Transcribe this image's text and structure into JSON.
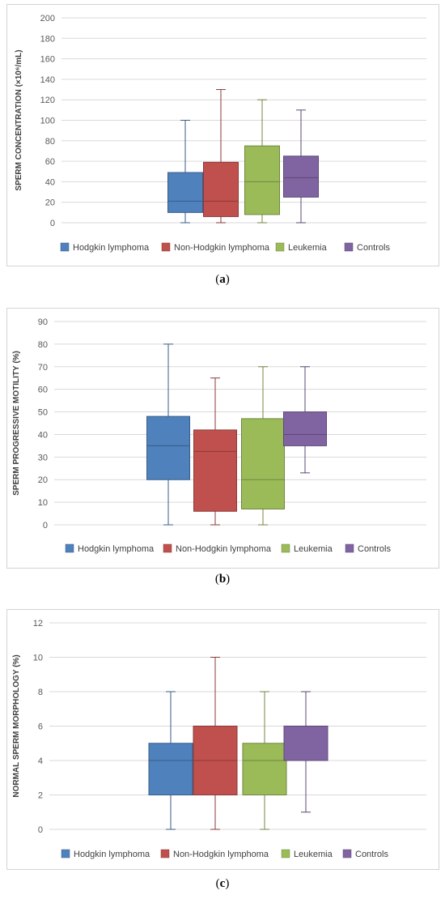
{
  "chart_data": [
    {
      "type": "boxplot",
      "ylabel": "SPERM CONCENTRATION (×10⁶/mL)",
      "ylim": [
        0,
        200
      ],
      "yticks": [
        0,
        20,
        40,
        60,
        80,
        100,
        120,
        140,
        160,
        180,
        200
      ],
      "legend_position": "bottom",
      "caption_prefix": "(",
      "caption_label": "a",
      "caption_suffix": ")",
      "series": [
        {
          "name": "Hodgkin lymphoma",
          "color": "#4f81bd",
          "min": 0,
          "q1": 10,
          "median": 21,
          "q3": 49,
          "max": 100
        },
        {
          "name": "Non-Hodgkin lymphoma",
          "color": "#c0504d",
          "min": 0,
          "q1": 6,
          "median": 21,
          "q3": 59,
          "max": 130
        },
        {
          "name": "Leukemia",
          "color": "#9bbb59",
          "min": 0,
          "q1": 8,
          "median": 40,
          "q3": 75,
          "max": 120
        },
        {
          "name": "Controls",
          "color": "#8064a2",
          "min": 0,
          "q1": 25,
          "median": 44,
          "q3": 65,
          "max": 110
        }
      ]
    },
    {
      "type": "boxplot",
      "ylabel": "SPERM PROGRESSIVE MOTILITY (%)",
      "ylim": [
        0,
        90
      ],
      "yticks": [
        0,
        10,
        20,
        30,
        40,
        50,
        60,
        70,
        80,
        90
      ],
      "legend_position": "bottom",
      "caption_prefix": "(",
      "caption_label": "b",
      "caption_suffix": ")",
      "series": [
        {
          "name": "Hodgkin lymphoma",
          "color": "#4f81bd",
          "min": 0,
          "q1": 20,
          "median": 35,
          "q3": 48,
          "max": 80
        },
        {
          "name": "Non-Hodgkin lymphoma",
          "color": "#c0504d",
          "min": 0,
          "q1": 6,
          "median": 32.5,
          "q3": 42,
          "max": 65
        },
        {
          "name": "Leukemia",
          "color": "#9bbb59",
          "min": 0,
          "q1": 7,
          "median": 20,
          "q3": 47,
          "max": 70
        },
        {
          "name": "Controls",
          "color": "#8064a2",
          "min": 23,
          "q1": 35,
          "median": 40,
          "q3": 50,
          "max": 70
        }
      ]
    },
    {
      "type": "boxplot",
      "ylabel": "NORMAL SPERM MORPHOLOGY (%)",
      "ylim": [
        0,
        12
      ],
      "yticks": [
        0,
        2,
        4,
        6,
        8,
        10,
        12
      ],
      "legend_position": "bottom",
      "caption_prefix": "(",
      "caption_label": "c",
      "caption_suffix": ")",
      "series": [
        {
          "name": "Hodgkin lymphoma",
          "color": "#4f81bd",
          "min": 0,
          "q1": 2,
          "median": 4,
          "q3": 5,
          "max": 8
        },
        {
          "name": "Non-Hodgkin lymphoma",
          "color": "#c0504d",
          "min": 0,
          "q1": 2,
          "median": 4,
          "q3": 6,
          "max": 10
        },
        {
          "name": "Leukemia",
          "color": "#9bbb59",
          "min": 0,
          "q1": 2,
          "median": 4,
          "q3": 5,
          "max": 8
        },
        {
          "name": "Controls",
          "color": "#8064a2",
          "min": 1,
          "q1": 4,
          "median": 4,
          "q3": 6,
          "max": 8
        }
      ]
    }
  ]
}
